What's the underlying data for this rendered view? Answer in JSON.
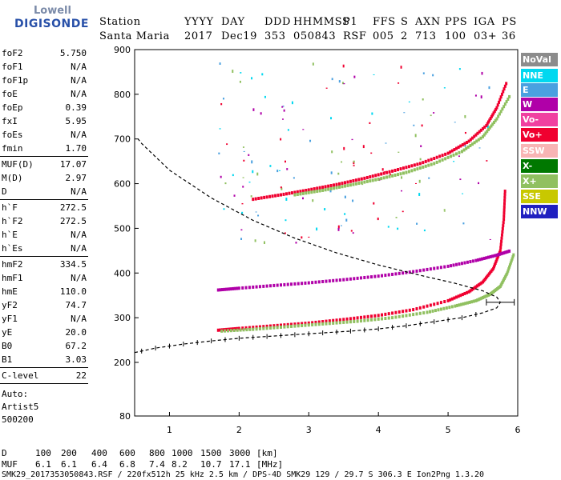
{
  "logo": {
    "line1": "Lowell",
    "line2": "DIGISONDE"
  },
  "header": {
    "labels": [
      "Station",
      "YYYY",
      "DAY",
      "DDD",
      "HHMMSS",
      "P1",
      "FFS",
      "S",
      "AXN",
      "PPS",
      "IGA",
      "PS"
    ],
    "values": [
      "Santa Maria",
      "2017",
      "Dec19",
      "353",
      "050843",
      "RSF",
      "005",
      "2",
      "713",
      "100",
      "03+",
      "36"
    ]
  },
  "params": {
    "group1": [
      {
        "name": "foF2",
        "value": "5.750"
      },
      {
        "name": "foF1",
        "value": "N/A"
      },
      {
        "name": "foF1p",
        "value": "N/A"
      },
      {
        "name": "foE",
        "value": "N/A"
      },
      {
        "name": "foEp",
        "value": "0.39"
      },
      {
        "name": "fxI",
        "value": "5.95"
      },
      {
        "name": "foEs",
        "value": "N/A"
      },
      {
        "name": "fmin",
        "value": "1.70"
      }
    ],
    "group2": [
      {
        "name": "MUF(D)",
        "value": "17.07"
      },
      {
        "name": "M(D)",
        "value": "2.97"
      },
      {
        "name": "D",
        "value": "N/A"
      }
    ],
    "group3": [
      {
        "name": "h`F",
        "value": "272.5"
      },
      {
        "name": "h`F2",
        "value": "272.5"
      },
      {
        "name": "h`E",
        "value": "N/A"
      },
      {
        "name": "h`Es",
        "value": "N/A"
      }
    ],
    "group4": [
      {
        "name": "hmF2",
        "value": "334.5"
      },
      {
        "name": "hmF1",
        "value": "N/A"
      },
      {
        "name": "hmE",
        "value": "110.0"
      },
      {
        "name": "yF2",
        "value": "74.7"
      },
      {
        "name": "yF1",
        "value": "N/A"
      },
      {
        "name": "yE",
        "value": "20.0"
      },
      {
        "name": "B0",
        "value": "67.2"
      },
      {
        "name": "B1",
        "value": "3.03"
      }
    ],
    "group5": [
      {
        "name": "C-level",
        "value": "22"
      }
    ],
    "auto_lines": [
      "Auto:",
      "Artist5",
      "500200"
    ]
  },
  "legend": [
    {
      "label": "NoVal",
      "color": "#8c8c8c"
    },
    {
      "label": "NNE",
      "color": "#00d8f0"
    },
    {
      "label": "E",
      "color": "#4aa0e0"
    },
    {
      "label": "W",
      "color": "#b000a8"
    },
    {
      "label": "Vo-",
      "color": "#f040a0"
    },
    {
      "label": "Vo+",
      "color": "#f00030"
    },
    {
      "label": "SSW",
      "color": "#f8b4b4"
    },
    {
      "label": "X-",
      "color": "#007800"
    },
    {
      "label": "X+",
      "color": "#90c060"
    },
    {
      "label": "SSE",
      "color": "#c8c800"
    },
    {
      "label": "NNW",
      "color": "#2020c0"
    }
  ],
  "footer": {
    "row1_label": "D",
    "row1_values": [
      "100",
      "200",
      "400",
      "600",
      "800",
      "1000",
      "1500",
      "3000",
      "[km]"
    ],
    "row2_label": "MUF",
    "row2_values": [
      "6.1",
      "6.1",
      "6.4",
      "6.8",
      "7.4",
      "8.2",
      "10.7",
      "17.1",
      "[MHz]"
    ],
    "info": "SMK29_2017353050843.RSF / 220fx512h 25 kHz 2.5 km / DPS-4D SMK29 129 / 29.7 S 306.3 E Ion2Png 1.3.20"
  },
  "chart_data": {
    "type": "scatter",
    "title": "",
    "xlabel": "",
    "ylabel": "",
    "xlim": [
      0.5,
      6.0
    ],
    "ylim": [
      80,
      900
    ],
    "xticks": [
      1,
      2,
      3,
      4,
      5,
      6
    ],
    "yticks": [
      80,
      200,
      300,
      400,
      500,
      600,
      700,
      800,
      900
    ],
    "grid": false,
    "legend_position": "right",
    "profile_curve": {
      "x": [
        0.5,
        0.8,
        1.2,
        1.6,
        2.0,
        2.4,
        2.8,
        3.2,
        3.6,
        4.0,
        4.4,
        4.8,
        5.2,
        5.5,
        5.7,
        5.75,
        5.7,
        5.5,
        5.1,
        4.6,
        4.0,
        3.4,
        2.8,
        2.2,
        1.6,
        1.0,
        0.6,
        0.55
      ],
      "y": [
        222,
        232,
        241,
        248,
        254,
        258,
        262,
        266,
        270,
        275,
        282,
        291,
        300,
        311,
        322,
        334.5,
        346,
        360,
        377,
        395,
        418,
        445,
        478,
        518,
        568,
        630,
        690,
        700
      ]
    },
    "profile_ticks_x": [
      0.6,
      0.8,
      1.0,
      1.2,
      1.4,
      1.6,
      1.8,
      2.0,
      2.2,
      2.4,
      2.6,
      2.8,
      3.0,
      3.2,
      3.4,
      3.6,
      3.8,
      4.0,
      4.2,
      4.4,
      4.6,
      4.8,
      5.0,
      5.2,
      5.4
    ],
    "series": [
      {
        "name": "Vo+",
        "trace": {
          "x": [
            1.7,
            2.0,
            2.5,
            3.0,
            3.5,
            4.0,
            4.5,
            5.0,
            5.3,
            5.5,
            5.65,
            5.75,
            5.8,
            5.82
          ],
          "y": [
            272,
            276,
            282,
            288,
            296,
            305,
            318,
            338,
            358,
            380,
            410,
            450,
            520,
            590
          ]
        }
      },
      {
        "name": "X+",
        "trace": {
          "x": [
            1.75,
            2.2,
            2.7,
            3.2,
            3.7,
            4.2,
            4.7,
            5.1,
            5.4,
            5.6,
            5.75,
            5.85,
            5.95
          ],
          "y": [
            270,
            274,
            280,
            286,
            292,
            300,
            312,
            326,
            338,
            352,
            370,
            400,
            445
          ]
        }
      },
      {
        "name": "W",
        "trace": {
          "x": [
            1.7,
            2.0,
            2.5,
            3.0,
            3.5,
            4.0,
            4.5,
            5.0,
            5.4,
            5.7,
            5.9
          ],
          "y": [
            362,
            366,
            372,
            378,
            385,
            393,
            403,
            415,
            428,
            440,
            450
          ]
        }
      },
      {
        "name": "Vo+",
        "trace": {
          "x": [
            2.2,
            2.6,
            3.0,
            3.4,
            3.8,
            4.2,
            4.6,
            5.0,
            5.3,
            5.55,
            5.7,
            5.85
          ],
          "y": [
            565,
            575,
            586,
            598,
            612,
            628,
            645,
            668,
            695,
            730,
            770,
            830
          ]
        }
      },
      {
        "name": "X+",
        "trace": {
          "x": [
            2.8,
            3.2,
            3.6,
            4.0,
            4.4,
            4.8,
            5.2,
            5.5,
            5.7,
            5.9
          ],
          "y": [
            575,
            585,
            597,
            610,
            625,
            645,
            672,
            705,
            745,
            800
          ]
        }
      }
    ]
  }
}
